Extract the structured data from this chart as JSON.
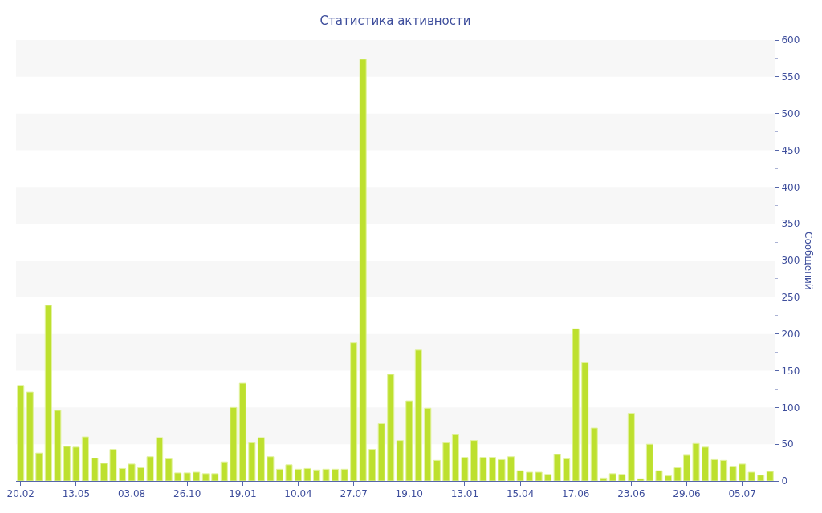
{
  "chart_data": {
    "type": "bar",
    "title": "Статистика активности",
    "ylabel": "Сообщений",
    "categories": [
      "20.02",
      null,
      null,
      null,
      null,
      null,
      "13.05",
      null,
      null,
      null,
      null,
      null,
      "03.08",
      null,
      null,
      null,
      null,
      null,
      "26.10",
      null,
      null,
      null,
      null,
      null,
      "19.01",
      null,
      null,
      null,
      null,
      null,
      "10.04",
      null,
      null,
      null,
      null,
      null,
      "27.07",
      null,
      null,
      null,
      null,
      null,
      "19.10",
      null,
      null,
      null,
      null,
      null,
      "13.01",
      null,
      null,
      null,
      null,
      null,
      "15.04",
      null,
      null,
      null,
      null,
      null,
      "17.06",
      null,
      null,
      null,
      null,
      null,
      "23.06",
      null,
      null,
      null,
      null,
      null,
      "29.06",
      null,
      null,
      null,
      null,
      null,
      "05.07",
      null,
      null,
      null
    ],
    "values": [
      130,
      121,
      38,
      239,
      96,
      47,
      46,
      60,
      31,
      24,
      43,
      17,
      23,
      18,
      33,
      59,
      30,
      11,
      11,
      12,
      10,
      10,
      26,
      100,
      133,
      52,
      59,
      33,
      16,
      22,
      16,
      17,
      15,
      16,
      16,
      16,
      188,
      574,
      43,
      78,
      145,
      55,
      109,
      178,
      99,
      28,
      52,
      63,
      32,
      55,
      32,
      32,
      29,
      33,
      14,
      12,
      12,
      9,
      36,
      30,
      207,
      161,
      72,
      4,
      10,
      9,
      92,
      3,
      50,
      14,
      7,
      18,
      35,
      51,
      46,
      29,
      28,
      20,
      23,
      12,
      8,
      13
    ],
    "color": "#bde02e",
    "ylim": [
      0,
      600
    ],
    "yticks": [
      0,
      {
        "value": 25,
        "label": null
      },
      50,
      {
        "value": 75,
        "label": null
      },
      100,
      {
        "value": 125,
        "label": null
      },
      150,
      {
        "value": 175,
        "label": null
      },
      200,
      {
        "value": 225,
        "label": null
      },
      250,
      {
        "value": 275,
        "label": null
      },
      300,
      {
        "value": 325,
        "label": null
      },
      350,
      {
        "value": 375,
        "label": null
      },
      400,
      {
        "value": 425,
        "label": null
      },
      450,
      {
        "value": 475,
        "label": null
      },
      500,
      {
        "value": 525,
        "label": null
      },
      550,
      {
        "value": 575,
        "label": null
      },
      600
    ],
    "bands": [
      {
        "axis": "y",
        "from": 50,
        "to": 100,
        "color": "#f7f7f7"
      },
      {
        "axis": "y",
        "from": 150,
        "to": 200,
        "color": "#f7f7f7"
      },
      {
        "axis": "y",
        "from": 250,
        "to": 300,
        "color": "#f7f7f7"
      },
      {
        "axis": "y",
        "from": 350,
        "to": 400,
        "color": "#f7f7f7"
      },
      {
        "axis": "y",
        "from": 450,
        "to": 500,
        "color": "#f7f7f7"
      },
      {
        "axis": "y",
        "from": 550,
        "to": 600,
        "color": "#f7f7f7"
      }
    ]
  }
}
